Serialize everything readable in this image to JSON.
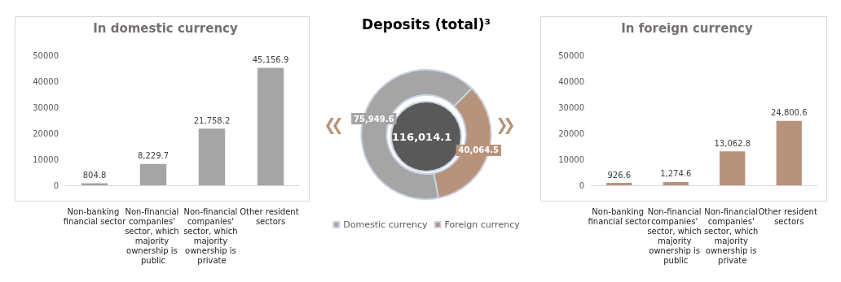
{
  "chart_data": [
    {
      "type": "bar",
      "title": "In domestic currency",
      "categories": [
        "Non-banking financial sector",
        "Non-financial companies' sector, which majority ownership is public",
        "Non-financial companies' sector, which majority ownership is private",
        "Other resident sectors"
      ],
      "values": [
        804.8,
        8229.7,
        21758.2,
        45156.9
      ],
      "value_labels": [
        "804.8",
        "8,229.7",
        "21,758.2",
        "45,156.9"
      ],
      "color": "#a5a5a5",
      "ylim": [
        0,
        50000
      ],
      "yticks": [
        0,
        10000,
        20000,
        30000,
        40000,
        50000
      ]
    },
    {
      "type": "donut",
      "title": "Deposits (total)³",
      "categories": [
        "Domestic currency",
        "Foreign currency"
      ],
      "values": [
        75949.6,
        40064.5
      ],
      "value_labels": [
        "75,949.6",
        "40,064.5"
      ],
      "colors": [
        "#a5a5a5",
        "#b8937c"
      ],
      "legend": "bottom",
      "annotations": [
        "116,014.1"
      ]
    },
    {
      "type": "bar",
      "title": "In foreign currency",
      "categories": [
        "Non-banking financial sector",
        "Non-financial companies' sector, which majority ownership is public",
        "Non-financial companies' sector, which majority ownership is private",
        "Other resident sectors"
      ],
      "values": [
        926.6,
        1274.6,
        13062.8,
        24800.6
      ],
      "value_labels": [
        "926.6",
        "1,274.6",
        "13,062.8",
        "24,800.6"
      ],
      "color": "#b8937c",
      "ylim": [
        0,
        50000
      ],
      "yticks": [
        0,
        10000,
        20000,
        30000,
        40000,
        50000
      ]
    }
  ]
}
